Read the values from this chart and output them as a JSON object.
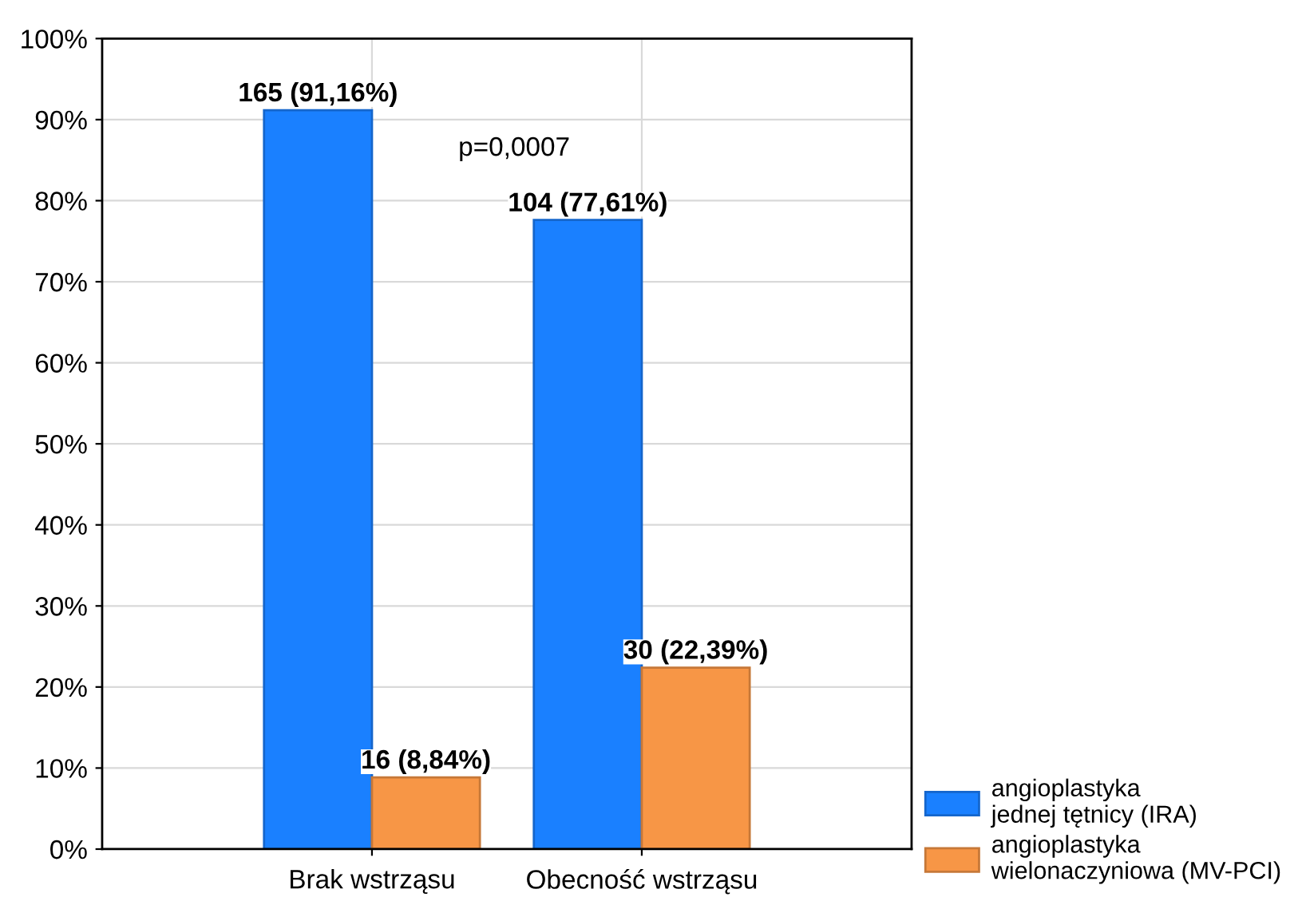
{
  "chart_data": {
    "type": "bar",
    "categories": [
      "Brak wstrząsu",
      "Obecność wstrząsu"
    ],
    "series": [
      {
        "name": "angioplastyka\njednej tętnicy (IRA)",
        "color": "#1a80ff",
        "values": [
          91.16,
          77.61
        ],
        "value_labels": [
          "165 (91,16%)",
          "104 (77,61%)"
        ]
      },
      {
        "name": "angioplastyka\nwielonaczyniowa (MV-PCI)",
        "color": "#f79646",
        "values": [
          8.84,
          22.39
        ],
        "value_labels": [
          "16 (8,84%)",
          "30 (22,39%)"
        ]
      }
    ],
    "ylim": [
      0,
      100
    ],
    "yticks": [
      {
        "value": 0,
        "label": "0%"
      },
      {
        "value": 10,
        "label": "10%"
      },
      {
        "value": 20,
        "label": "20%"
      },
      {
        "value": 30,
        "label": "30%"
      },
      {
        "value": 40,
        "label": "40%"
      },
      {
        "value": 50,
        "label": "50%"
      },
      {
        "value": 60,
        "label": "60%"
      },
      {
        "value": 70,
        "label": "70%"
      },
      {
        "value": 80,
        "label": "80%"
      },
      {
        "value": 90,
        "label": "90%"
      },
      {
        "value": 100,
        "label": "100%"
      }
    ],
    "grid": true,
    "legend": "bottom right",
    "annotations": [
      "p=0,0007"
    ]
  }
}
